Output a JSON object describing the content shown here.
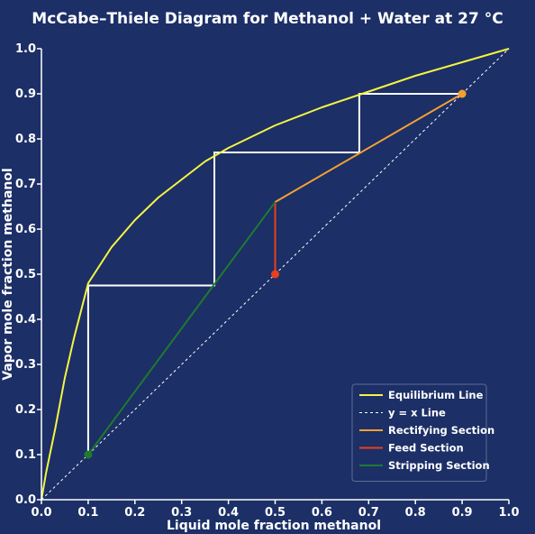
{
  "chart_data": {
    "type": "line",
    "title": "McCabe–Thiele Diagram for Methanol + Water at 27 °C",
    "xlabel": "Liquid mole fraction methanol",
    "ylabel": "Vapor mole fraction methanol",
    "xlim": [
      0,
      1
    ],
    "ylim": [
      0,
      1
    ],
    "xticks": [
      "0.0",
      "0.1",
      "0.2",
      "0.3",
      "0.4",
      "0.5",
      "0.6",
      "0.7",
      "0.8",
      "0.9",
      "1.0"
    ],
    "yticks": [
      "0.0",
      "0.1",
      "0.2",
      "0.3",
      "0.4",
      "0.5",
      "0.6",
      "0.7",
      "0.8",
      "0.9",
      "1.0"
    ],
    "grid": false,
    "legend_position": "bottom-right",
    "series": [
      {
        "name": "Equilibrium Line",
        "color": "#f5f542",
        "style": "solid",
        "points": [
          [
            0,
            0
          ],
          [
            0.01,
            0.06
          ],
          [
            0.02,
            0.11
          ],
          [
            0.03,
            0.16
          ],
          [
            0.05,
            0.27
          ],
          [
            0.07,
            0.36
          ],
          [
            0.1,
            0.48
          ],
          [
            0.15,
            0.56
          ],
          [
            0.2,
            0.62
          ],
          [
            0.25,
            0.67
          ],
          [
            0.3,
            0.71
          ],
          [
            0.35,
            0.75
          ],
          [
            0.4,
            0.78
          ],
          [
            0.5,
            0.83
          ],
          [
            0.6,
            0.87
          ],
          [
            0.7,
            0.905
          ],
          [
            0.8,
            0.94
          ],
          [
            0.9,
            0.97
          ],
          [
            1.0,
            1.0
          ]
        ]
      },
      {
        "name": "y = x Line",
        "color": "#ffffff",
        "style": "dashed",
        "points": [
          [
            0,
            0
          ],
          [
            1,
            1
          ]
        ]
      },
      {
        "name": "Rectifying Section",
        "color": "#f5a031",
        "style": "solid",
        "points": [
          [
            0.5,
            0.66
          ],
          [
            0.9,
            0.9
          ]
        ]
      },
      {
        "name": "Feed Section",
        "color": "#e8401c",
        "style": "solid",
        "points": [
          [
            0.5,
            0.5
          ],
          [
            0.5,
            0.66
          ]
        ]
      },
      {
        "name": "Stripping Section",
        "color": "#1f7a2e",
        "style": "solid",
        "points": [
          [
            0.1,
            0.1
          ],
          [
            0.5,
            0.66
          ]
        ]
      }
    ],
    "stages": {
      "color": "#ffffff",
      "points": [
        [
          0.9,
          0.9
        ],
        [
          0.68,
          0.9
        ],
        [
          0.68,
          0.77
        ],
        [
          0.37,
          0.77
        ],
        [
          0.37,
          0.475
        ],
        [
          0.1,
          0.475
        ],
        [
          0.1,
          0.1
        ]
      ]
    },
    "markers": [
      {
        "x": 0.9,
        "y": 0.9,
        "color": "#f5a031"
      },
      {
        "x": 0.5,
        "y": 0.5,
        "color": "#e8401c"
      },
      {
        "x": 0.1,
        "y": 0.1,
        "color": "#1f7a2e"
      }
    ]
  }
}
